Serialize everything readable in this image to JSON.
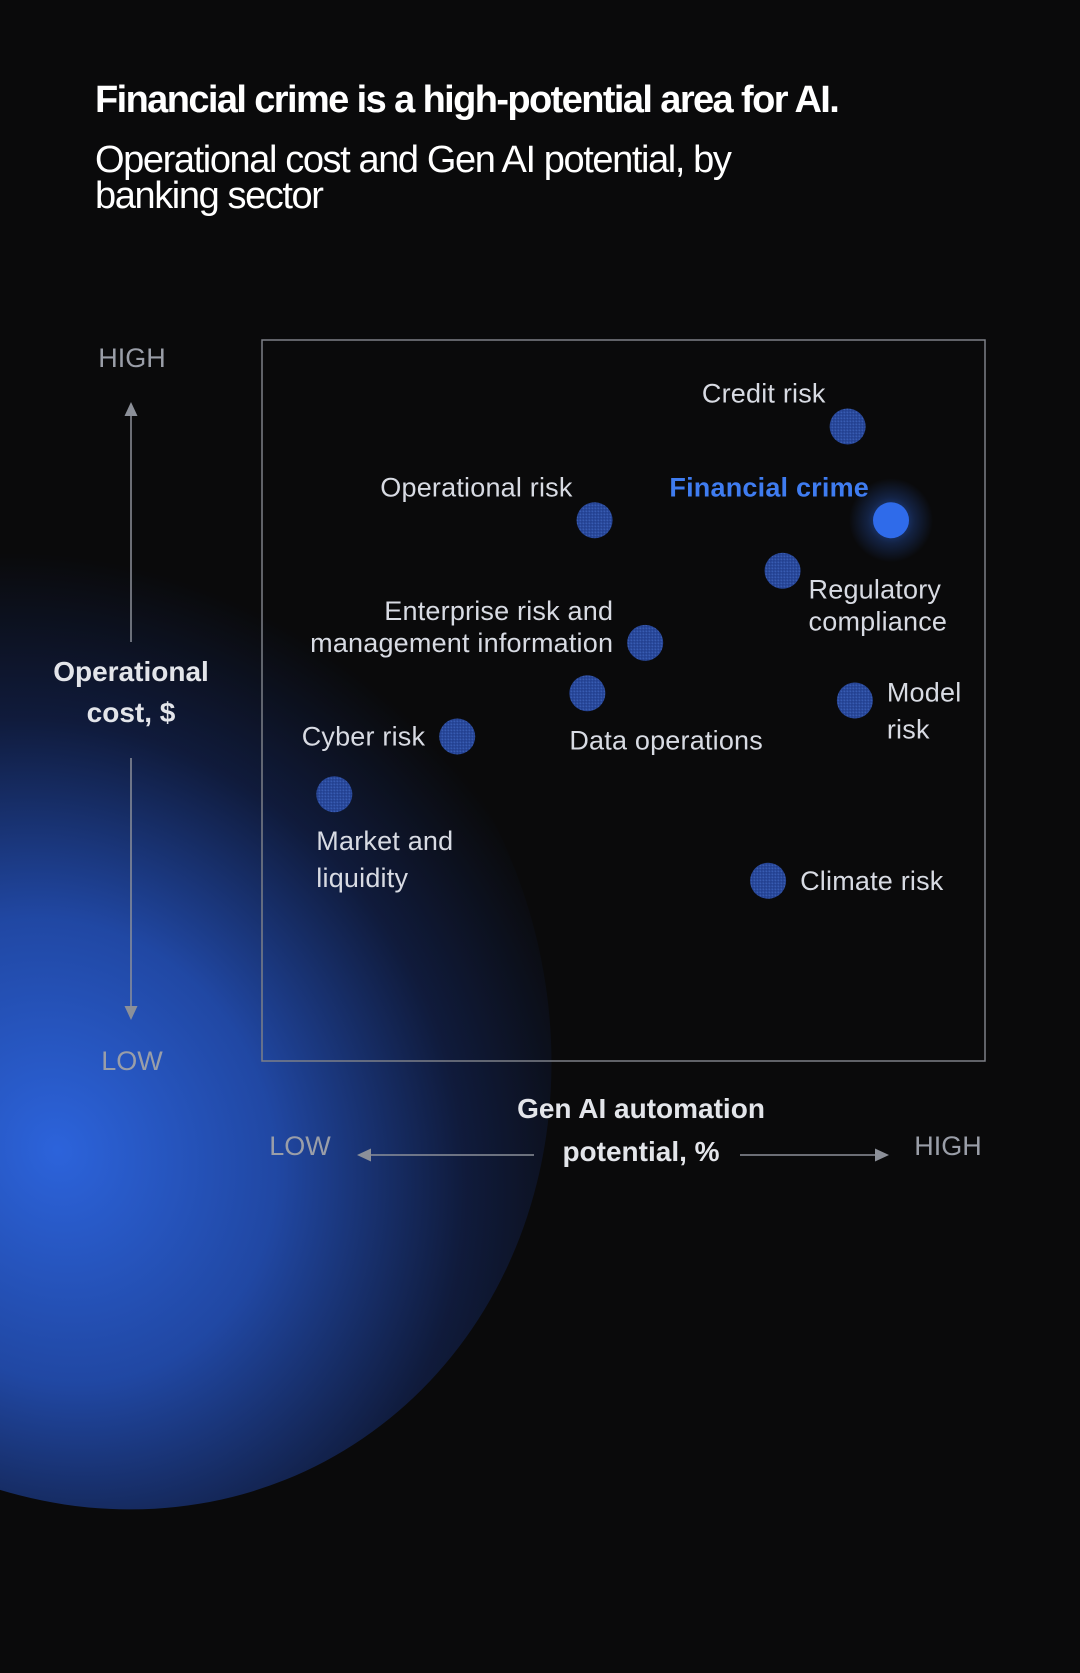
{
  "header": {
    "title": "Financial crime is a high-potential area for AI.",
    "subtitle": "Operational cost and Gen AI potential, by banking sector"
  },
  "colors": {
    "background": "#0a0a0b",
    "point": "#2b4a9a",
    "highlight": "#2f6bea",
    "highlight_label": "#3f7cf0",
    "glow": "#2e68e6"
  },
  "chart_data": {
    "type": "scatter",
    "title": "",
    "xlabel_lines": [
      "Gen AI automation",
      "potential, %"
    ],
    "ylabel_lines": [
      "Operational",
      "cost, $"
    ],
    "x_axis_ends": {
      "low": "LOW",
      "high": "HIGH"
    },
    "y_axis_ends": {
      "low": "LOW",
      "high": "HIGH"
    },
    "xlim": [
      0,
      100
    ],
    "ylim": [
      0,
      100
    ],
    "grid": false,
    "points": [
      {
        "name": "Credit risk",
        "label_lines": [
          "Credit risk"
        ],
        "x": 81,
        "y": 88,
        "label_pos": "above-left",
        "highlight": false
      },
      {
        "name": "Financial crime",
        "label_lines": [
          "Financial crime"
        ],
        "x": 87,
        "y": 75,
        "label_pos": "above-left",
        "highlight": true
      },
      {
        "name": "Operational risk",
        "label_lines": [
          "Operational risk"
        ],
        "x": 46,
        "y": 75,
        "label_pos": "above-left",
        "highlight": false
      },
      {
        "name": "Regulatory compliance",
        "label_lines": [
          "Regulatory",
          "compliance"
        ],
        "x": 72,
        "y": 68,
        "label_pos": "below-right",
        "highlight": false
      },
      {
        "name": "Enterprise risk and management information",
        "label_lines": [
          "Enterprise risk and",
          "management information"
        ],
        "x": 53,
        "y": 58,
        "label_pos": "left",
        "highlight": false
      },
      {
        "name": "Data operations",
        "label_lines": [
          "Data operations"
        ],
        "x": 45,
        "y": 51,
        "label_pos": "below",
        "highlight": false
      },
      {
        "name": "Model risk",
        "label_lines": [
          "Model",
          "risk"
        ],
        "x": 82,
        "y": 50,
        "label_pos": "right",
        "highlight": false
      },
      {
        "name": "Cyber risk",
        "label_lines": [
          "Cyber risk"
        ],
        "x": 27,
        "y": 45,
        "label_pos": "left",
        "highlight": false
      },
      {
        "name": "Market and liquidity",
        "label_lines": [
          "Market and",
          "liquidity"
        ],
        "x": 10,
        "y": 37,
        "label_pos": "below",
        "highlight": false
      },
      {
        "name": "Climate risk",
        "label_lines": [
          "Climate risk"
        ],
        "x": 70,
        "y": 25,
        "label_pos": "right",
        "highlight": false
      }
    ]
  }
}
